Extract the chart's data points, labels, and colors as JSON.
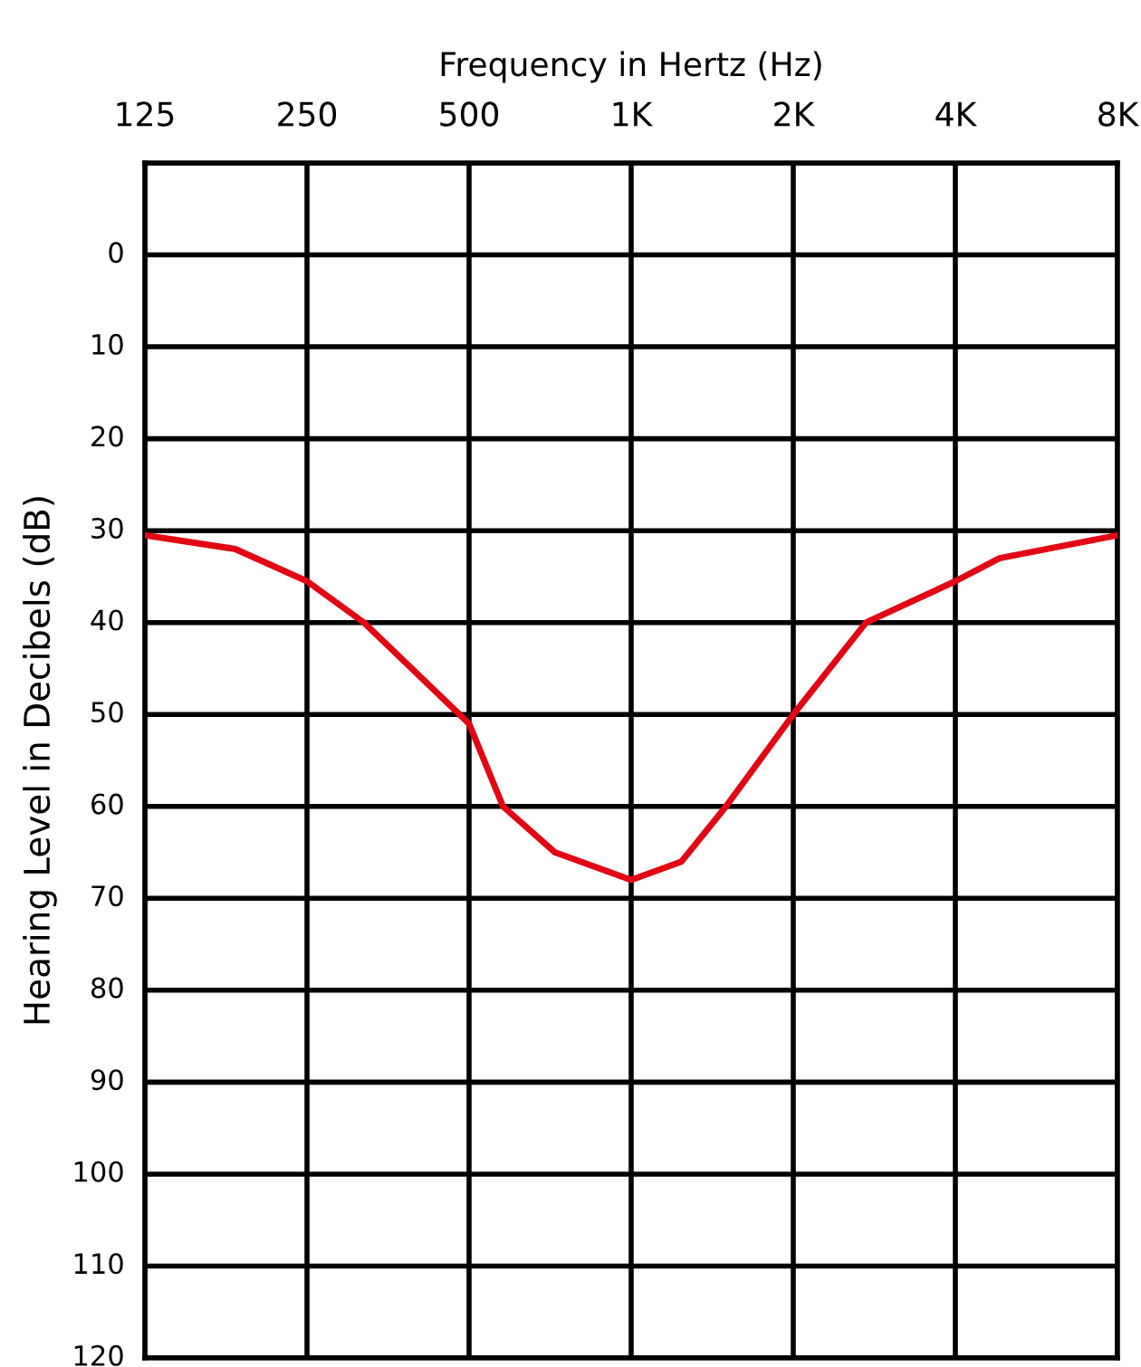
{
  "chart_data": {
    "type": "line",
    "xlabel": "Frequency in Hertz (Hz)",
    "ylabel": "Hearing Level in Decibels (dB)",
    "log": "x",
    "series": [
      {
        "color": "#e30613",
        "x": [
          125,
          184,
          250,
          319,
          500,
          578,
          722,
          1000,
          1240,
          1500,
          2000,
          2730,
          4000,
          4830,
          8000
        ],
        "values": [
          30.5,
          32,
          35.5,
          40,
          51,
          60,
          65,
          68,
          66,
          60,
          50,
          40,
          35.5,
          33,
          30.5
        ]
      }
    ],
    "xlim": [
      125,
      8000
    ],
    "xticks": [
      {
        "value": 125,
        "label": "125"
      },
      {
        "value": 250,
        "label": "250"
      },
      {
        "value": 500,
        "label": "500"
      },
      {
        "value": 1000,
        "label": "1K"
      },
      {
        "value": 2000,
        "label": "2K"
      },
      {
        "value": 4000,
        "label": "4K"
      },
      {
        "value": 8000,
        "label": "8K"
      }
    ],
    "ylim": [
      120,
      -10
    ],
    "yticks": [
      {
        "value": -10,
        "label": null
      },
      0,
      10,
      20,
      30,
      40,
      50,
      60,
      70,
      80,
      90,
      100,
      110,
      120
    ],
    "grid": true,
    "marker": "none",
    "line_style": "solid"
  }
}
